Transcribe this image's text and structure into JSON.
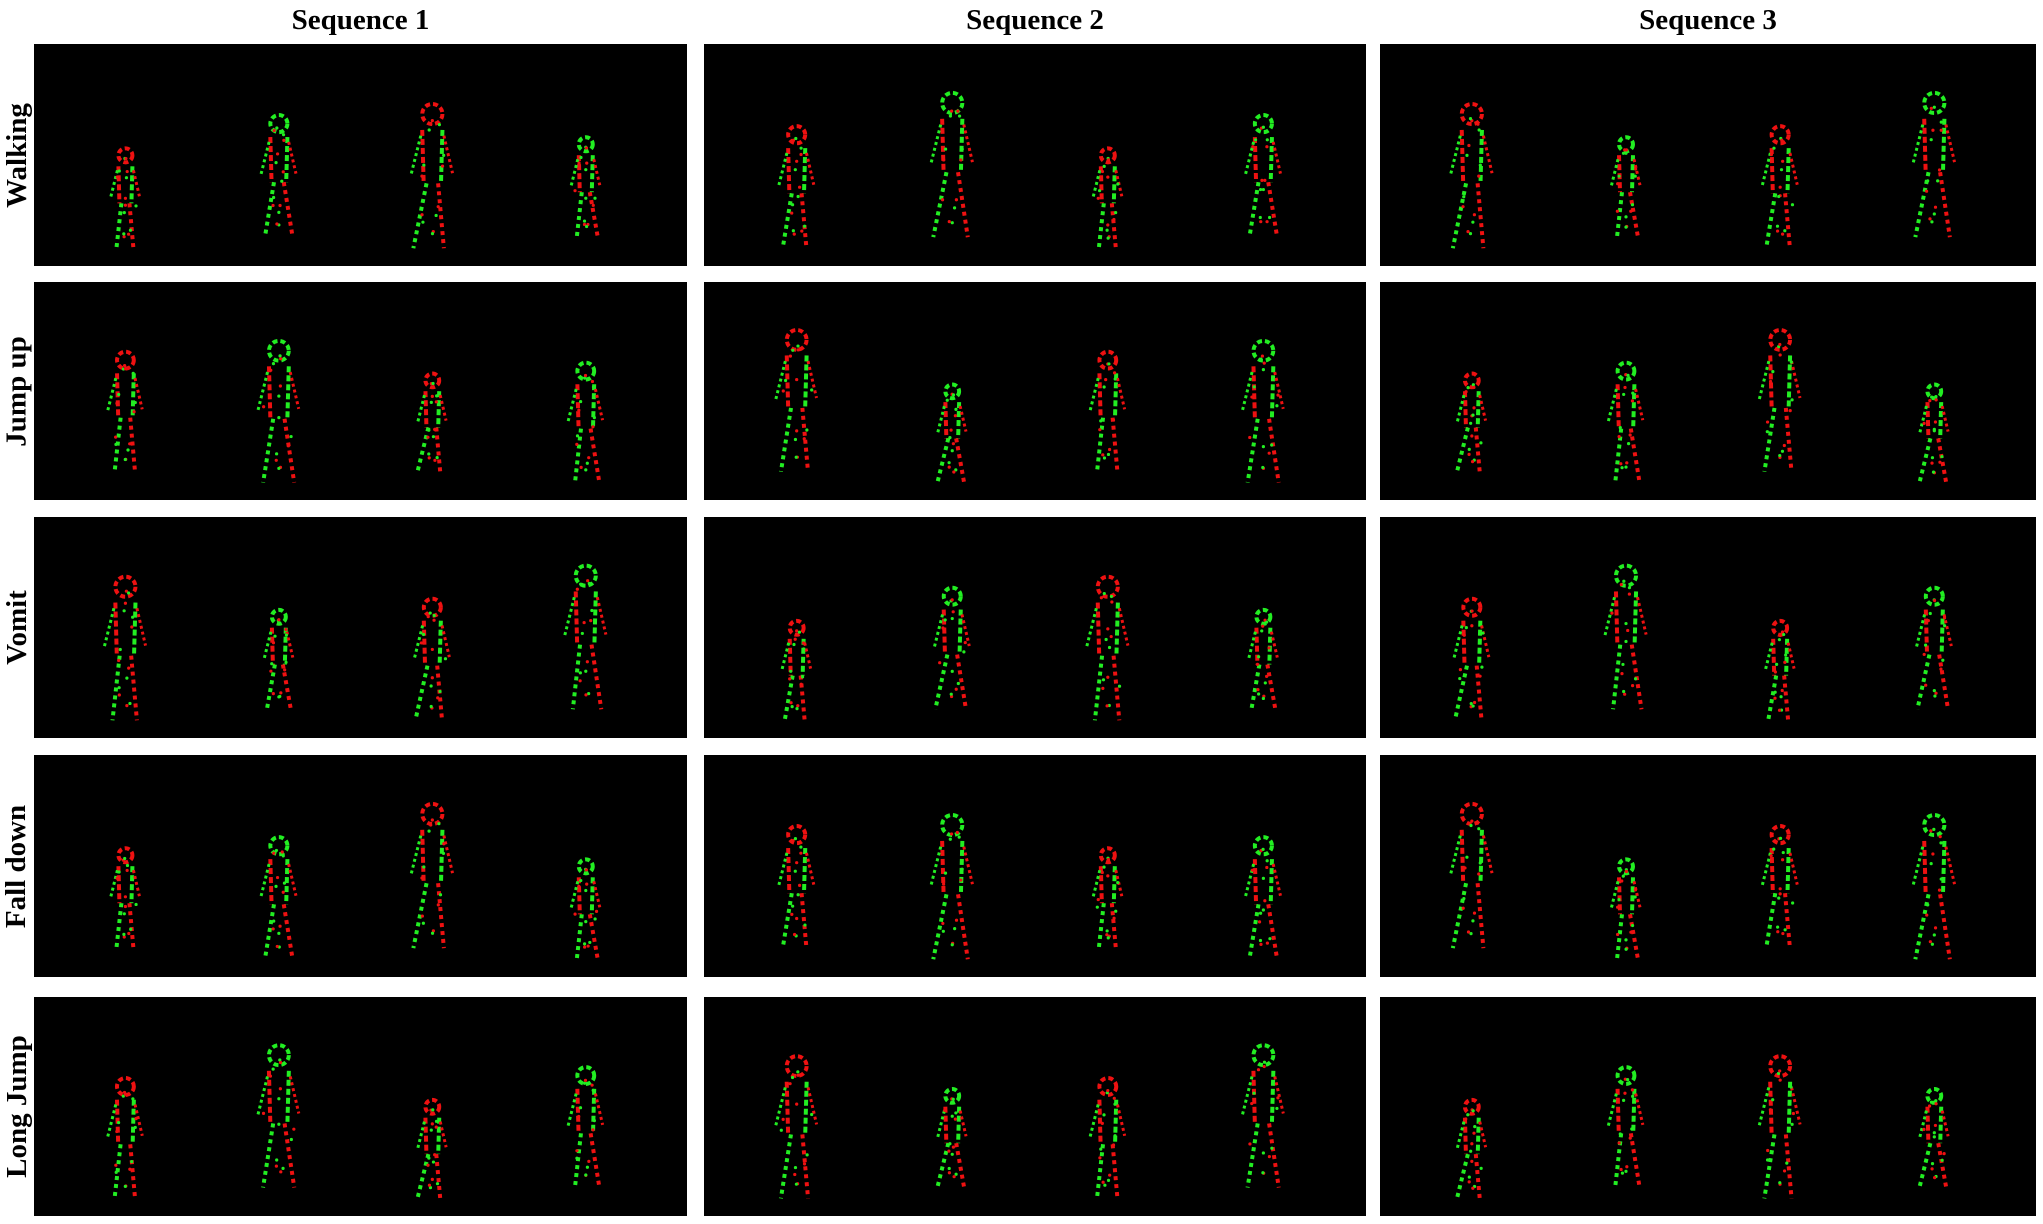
{
  "columns": [
    "Sequence 1",
    "Sequence 2",
    "Sequence 3"
  ],
  "rows": [
    "Walking",
    "Jump up",
    "Vomit",
    "Fall down",
    "Long Jump"
  ],
  "colors": {
    "background": "#000000",
    "polarity_positive": "#22ee22",
    "polarity_negative": "#ee1111"
  }
}
